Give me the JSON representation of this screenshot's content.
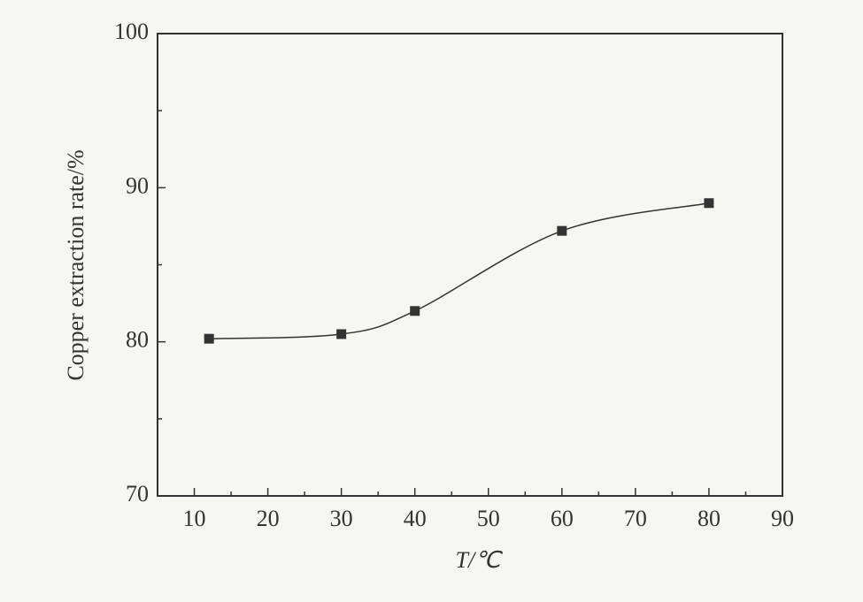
{
  "chart_data": {
    "type": "line",
    "xlabel": "T/℃",
    "ylabel": "Copper extraction rate/%",
    "x": [
      12,
      30,
      40,
      60,
      80
    ],
    "series": [
      {
        "color": "#333333",
        "values": [
          80.2,
          80.5,
          82.0,
          87.2,
          89.0
        ]
      }
    ],
    "xlim": [
      5,
      90
    ],
    "ylim": [
      70,
      100
    ],
    "xticks": [
      10,
      20,
      30,
      40,
      50,
      60,
      70,
      80,
      90
    ],
    "yticks": [
      70,
      80,
      90,
      100
    ],
    "xminor_ticks": [
      15,
      25,
      35,
      45,
      55,
      65,
      75,
      85
    ],
    "yminor_ticks": [
      75,
      85,
      95
    ]
  }
}
